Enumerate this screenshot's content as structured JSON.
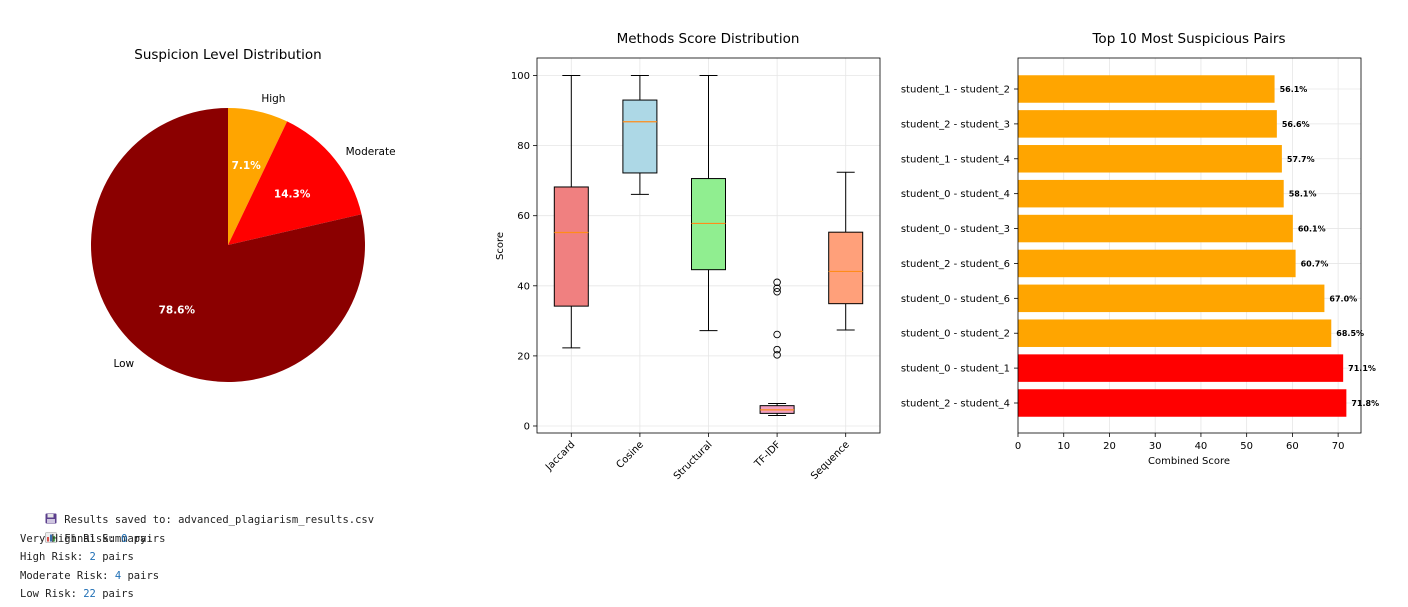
{
  "chart_data": [
    {
      "type": "pie",
      "title": "Suspicion Level Distribution",
      "slices": [
        {
          "label": "High",
          "value": 7.1,
          "pct_label": "7.1%",
          "color": "#ffa500"
        },
        {
          "label": "Moderate",
          "value": 14.3,
          "pct_label": "14.3%",
          "color": "#ff0000"
        },
        {
          "label": "Low",
          "value": 78.6,
          "pct_label": "78.6%",
          "color": "#8b0000"
        }
      ]
    },
    {
      "type": "box",
      "title": "Methods Score Distribution",
      "ylabel": "Score",
      "ylim": [
        -2,
        105
      ],
      "yticks": [
        0,
        20,
        40,
        60,
        80,
        100
      ],
      "grid": true,
      "boxes": [
        {
          "label": "Jaccard",
          "color": "#f08080",
          "whisker_low": 22.3,
          "q1": 34.2,
          "median": 55.2,
          "q3": 68.2,
          "whisker_high": 100,
          "outliers": []
        },
        {
          "label": "Cosine",
          "color": "#add8e6",
          "whisker_low": 66.1,
          "q1": 72.2,
          "median": 86.8,
          "q3": 93.0,
          "whisker_high": 100,
          "outliers": []
        },
        {
          "label": "Structural",
          "color": "#90ee90",
          "whisker_low": 27.2,
          "q1": 44.6,
          "median": 57.8,
          "q3": 70.6,
          "whisker_high": 100,
          "outliers": []
        },
        {
          "label": "TF-IDF",
          "color": "#f0a0c0",
          "whisker_low": 3.0,
          "q1": 3.6,
          "median": 4.6,
          "q3": 5.8,
          "whisker_high": 6.4,
          "outliers": [
            20.3,
            21.8,
            26.1,
            38.3,
            39.3,
            41.0
          ]
        },
        {
          "label": "Sequence",
          "color": "#ffa07a",
          "whisker_low": 27.4,
          "q1": 34.9,
          "median": 44.1,
          "q3": 55.3,
          "whisker_high": 72.4,
          "outliers": []
        }
      ]
    },
    {
      "type": "bar",
      "orientation": "horizontal",
      "title": "Top 10 Most Suspicious Pairs",
      "xlabel": "Combined Score",
      "xlim": [
        0,
        75
      ],
      "xticks": [
        0,
        10,
        20,
        30,
        40,
        50,
        60,
        70
      ],
      "grid": true,
      "categories": [
        "student_1 - student_2",
        "student_2 - student_3",
        "student_1 - student_4",
        "student_0 - student_4",
        "student_0 - student_3",
        "student_2 - student_6",
        "student_0 - student_6",
        "student_0 - student_2",
        "student_0 - student_1",
        "student_2 - student_4"
      ],
      "values": [
        56.1,
        56.6,
        57.7,
        58.1,
        60.1,
        60.7,
        67.0,
        68.5,
        71.1,
        71.8
      ],
      "value_labels": [
        "56.1%",
        "56.6%",
        "57.7%",
        "58.1%",
        "60.1%",
        "60.7%",
        "67.0%",
        "68.5%",
        "71.1%",
        "71.8%"
      ],
      "colors": [
        "#ffa500",
        "#ffa500",
        "#ffa500",
        "#ffa500",
        "#ffa500",
        "#ffa500",
        "#ffa500",
        "#ffa500",
        "#ff0000",
        "#ff0000"
      ]
    }
  ],
  "console": {
    "saved_icon": "floppy-disk-icon",
    "saved_text": "Results saved to: advanced_plagiarism_results.csv",
    "summary_icon": "bar-chart-icon",
    "summary_text": "Final Summary:",
    "rows": [
      {
        "label": "Very High Risk: ",
        "count": "0",
        "suffix": " pairs"
      },
      {
        "label": "High Risk: ",
        "count": "2",
        "suffix": " pairs"
      },
      {
        "label": "Moderate Risk: ",
        "count": "4",
        "suffix": " pairs"
      },
      {
        "label": "Low Risk: ",
        "count": "22",
        "suffix": " pairs"
      }
    ]
  }
}
